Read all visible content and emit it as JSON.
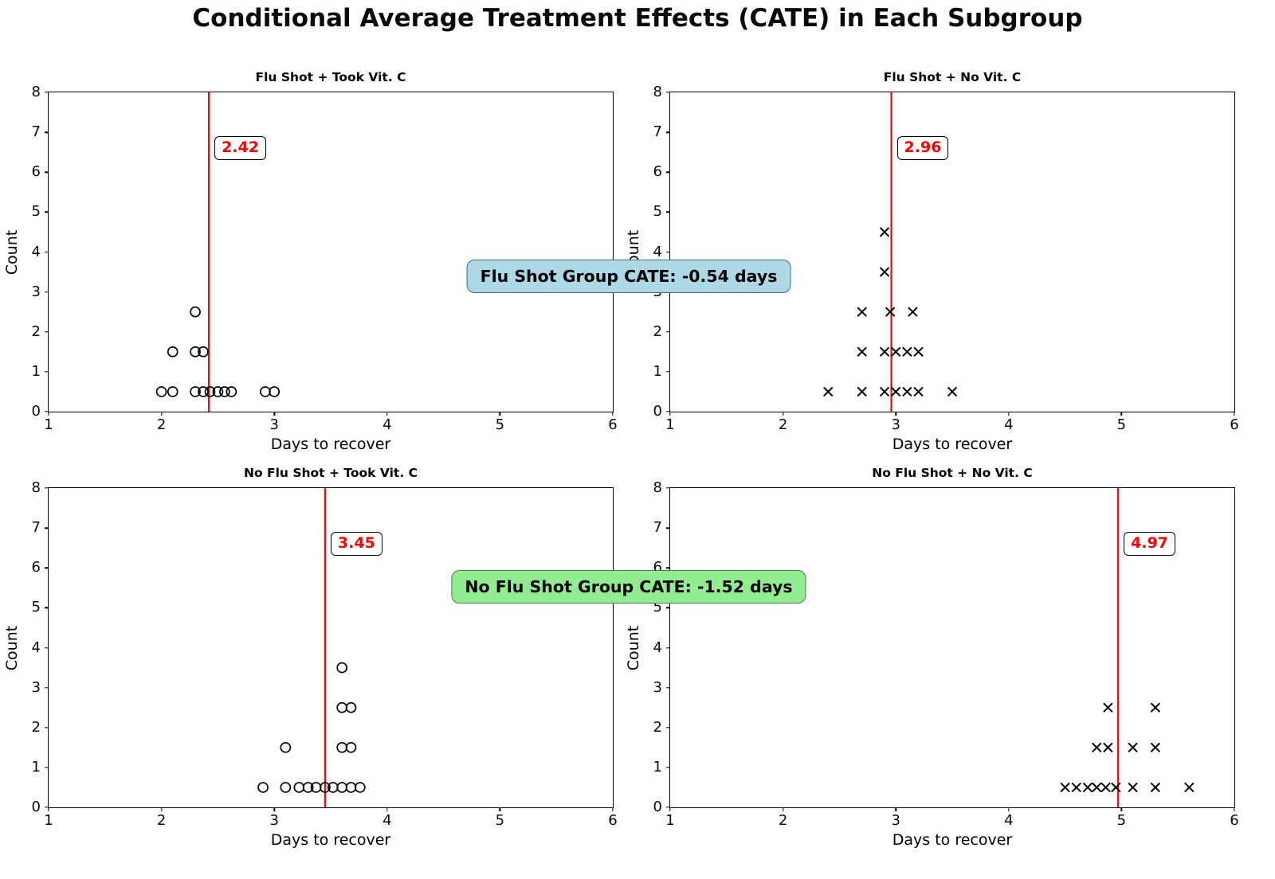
{
  "figure": {
    "title": "Conditional Average Treatment Effects (CATE) in Each Subgroup"
  },
  "annotations": [
    {
      "text": "Flu Shot Group CATE: -0.54 days",
      "bg_color": "#add8e6",
      "border_color": "#4d6b78"
    },
    {
      "text": "No Flu Shot Group CATE: -1.52 days",
      "bg_color": "#90ee90",
      "border_color": "#4d784d"
    }
  ],
  "chart_data": [
    {
      "type": "scatter",
      "title": "Flu Shot + Took Vit. C",
      "marker": "circle",
      "marker_color": "#000000",
      "xlabel": "Days to recover",
      "ylabel": "Count",
      "xlim": [
        1,
        6
      ],
      "ylim": [
        0,
        8
      ],
      "xticks": [
        1,
        2,
        3,
        4,
        5,
        6
      ],
      "yticks": [
        0,
        1,
        2,
        3,
        4,
        5,
        6,
        7,
        8
      ],
      "mean_line": {
        "value": 2.42,
        "label": "2.42",
        "color": "#ff0000",
        "label_y": 6.6
      },
      "points": [
        {
          "x": 2.0,
          "y": 0.5
        },
        {
          "x": 2.1,
          "y": 0.5
        },
        {
          "x": 2.3,
          "y": 0.5
        },
        {
          "x": 2.37,
          "y": 0.5
        },
        {
          "x": 2.43,
          "y": 0.5
        },
        {
          "x": 2.5,
          "y": 0.5
        },
        {
          "x": 2.56,
          "y": 0.5
        },
        {
          "x": 2.62,
          "y": 0.5
        },
        {
          "x": 2.92,
          "y": 0.5
        },
        {
          "x": 3.0,
          "y": 0.5
        },
        {
          "x": 2.1,
          "y": 1.5
        },
        {
          "x": 2.3,
          "y": 1.5
        },
        {
          "x": 2.37,
          "y": 1.5
        },
        {
          "x": 2.3,
          "y": 2.5
        }
      ]
    },
    {
      "type": "scatter",
      "title": "Flu Shot + No Vit. C",
      "marker": "x",
      "marker_color": "#000000",
      "xlabel": "Days to recover",
      "ylabel": "Count",
      "xlim": [
        1,
        6
      ],
      "ylim": [
        0,
        8
      ],
      "xticks": [
        1,
        2,
        3,
        4,
        5,
        6
      ],
      "yticks": [
        0,
        1,
        2,
        3,
        4,
        5,
        6,
        7,
        8
      ],
      "mean_line": {
        "value": 2.96,
        "label": "2.96",
        "color": "#ff0000",
        "label_y": 6.6
      },
      "points": [
        {
          "x": 2.4,
          "y": 0.5
        },
        {
          "x": 2.7,
          "y": 0.5
        },
        {
          "x": 2.9,
          "y": 0.5
        },
        {
          "x": 3.0,
          "y": 0.5
        },
        {
          "x": 3.1,
          "y": 0.5
        },
        {
          "x": 3.2,
          "y": 0.5
        },
        {
          "x": 3.5,
          "y": 0.5
        },
        {
          "x": 2.7,
          "y": 1.5
        },
        {
          "x": 2.9,
          "y": 1.5
        },
        {
          "x": 3.0,
          "y": 1.5
        },
        {
          "x": 3.1,
          "y": 1.5
        },
        {
          "x": 3.2,
          "y": 1.5
        },
        {
          "x": 2.7,
          "y": 2.5
        },
        {
          "x": 2.95,
          "y": 2.5
        },
        {
          "x": 3.15,
          "y": 2.5
        },
        {
          "x": 2.9,
          "y": 3.5
        },
        {
          "x": 2.9,
          "y": 4.5
        }
      ]
    },
    {
      "type": "scatter",
      "title": "No Flu Shot + Took Vit. C",
      "marker": "circle",
      "marker_color": "#000000",
      "xlabel": "Days to recover",
      "ylabel": "Count",
      "xlim": [
        1,
        6
      ],
      "ylim": [
        0,
        8
      ],
      "xticks": [
        1,
        2,
        3,
        4,
        5,
        6
      ],
      "yticks": [
        0,
        1,
        2,
        3,
        4,
        5,
        6,
        7,
        8
      ],
      "mean_line": {
        "value": 3.45,
        "label": "3.45",
        "color": "#ff0000",
        "label_y": 6.6
      },
      "points": [
        {
          "x": 2.9,
          "y": 0.5
        },
        {
          "x": 3.1,
          "y": 0.5
        },
        {
          "x": 3.22,
          "y": 0.5
        },
        {
          "x": 3.3,
          "y": 0.5
        },
        {
          "x": 3.37,
          "y": 0.5
        },
        {
          "x": 3.45,
          "y": 0.5
        },
        {
          "x": 3.52,
          "y": 0.5
        },
        {
          "x": 3.6,
          "y": 0.5
        },
        {
          "x": 3.68,
          "y": 0.5
        },
        {
          "x": 3.76,
          "y": 0.5
        },
        {
          "x": 3.1,
          "y": 1.5
        },
        {
          "x": 3.6,
          "y": 1.5
        },
        {
          "x": 3.68,
          "y": 1.5
        },
        {
          "x": 3.6,
          "y": 2.5
        },
        {
          "x": 3.68,
          "y": 2.5
        },
        {
          "x": 3.6,
          "y": 3.5
        }
      ]
    },
    {
      "type": "scatter",
      "title": "No Flu Shot + No Vit. C",
      "marker": "x",
      "marker_color": "#000000",
      "xlabel": "Days to recover",
      "ylabel": "Count",
      "xlim": [
        1,
        6
      ],
      "ylim": [
        0,
        8
      ],
      "xticks": [
        1,
        2,
        3,
        4,
        5,
        6
      ],
      "yticks": [
        0,
        1,
        2,
        3,
        4,
        5,
        6,
        7,
        8
      ],
      "mean_line": {
        "value": 4.97,
        "label": "4.97",
        "color": "#ff0000",
        "label_y": 6.6
      },
      "points": [
        {
          "x": 4.5,
          "y": 0.5
        },
        {
          "x": 4.6,
          "y": 0.5
        },
        {
          "x": 4.7,
          "y": 0.5
        },
        {
          "x": 4.78,
          "y": 0.5
        },
        {
          "x": 4.86,
          "y": 0.5
        },
        {
          "x": 4.95,
          "y": 0.5
        },
        {
          "x": 5.1,
          "y": 0.5
        },
        {
          "x": 5.3,
          "y": 0.5
        },
        {
          "x": 5.6,
          "y": 0.5
        },
        {
          "x": 4.78,
          "y": 1.5
        },
        {
          "x": 4.88,
          "y": 1.5
        },
        {
          "x": 5.1,
          "y": 1.5
        },
        {
          "x": 5.3,
          "y": 1.5
        },
        {
          "x": 4.88,
          "y": 2.5
        },
        {
          "x": 5.3,
          "y": 2.5
        }
      ]
    }
  ]
}
